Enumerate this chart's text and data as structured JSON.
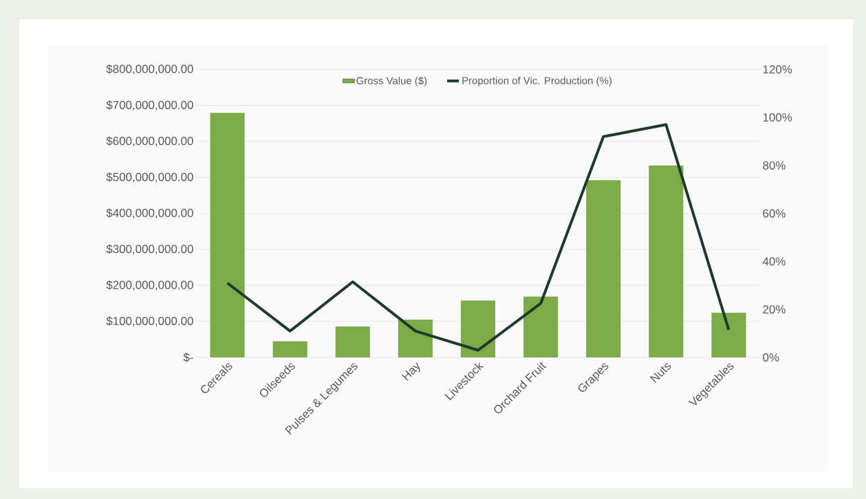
{
  "chart_data": {
    "type": "bar",
    "categories": [
      "Cereals",
      "Oilseeds",
      "Pulses & Legumes",
      "Hay",
      "Livestock",
      "Orchard Fruit",
      "Grapes",
      "Nuts",
      "Vegetables"
    ],
    "series": [
      {
        "name": "Gross Value ($)",
        "type": "bar",
        "color": "#7eab4a",
        "values": [
          679000000,
          45000000,
          86000000,
          105000000,
          158000000,
          169000000,
          492000000,
          533000000,
          124000000
        ]
      },
      {
        "name": "Proportion of Vic. Production (%)",
        "type": "line",
        "axis": "y2",
        "color": "#1e3a2b",
        "values": [
          31,
          11,
          31.5,
          11,
          3,
          22.5,
          92,
          97,
          11.5
        ]
      }
    ],
    "ylim": [
      0,
      800000000
    ],
    "yticks": [
      {
        "value": 0,
        "label": "$-"
      },
      {
        "value": 100000000,
        "label": "$100,000,000.00"
      },
      {
        "value": 200000000,
        "label": "$200,000,000.00"
      },
      {
        "value": 300000000,
        "label": "$300,000,000.00"
      },
      {
        "value": 400000000,
        "label": "$400,000,000.00"
      },
      {
        "value": 500000000,
        "label": "$500,000,000.00"
      },
      {
        "value": 600000000,
        "label": "$600,000,000.00"
      },
      {
        "value": 700000000,
        "label": "$700,000,000.00"
      },
      {
        "value": 800000000,
        "label": "$800,000,000.00"
      }
    ],
    "y2lim": [
      0,
      120
    ],
    "y2ticks": [
      {
        "value": 0,
        "label": "0%"
      },
      {
        "value": 20,
        "label": "20%"
      },
      {
        "value": 40,
        "label": "40%"
      },
      {
        "value": 60,
        "label": "60%"
      },
      {
        "value": 80,
        "label": "80%"
      },
      {
        "value": 100,
        "label": "100%"
      },
      {
        "value": 120,
        "label": "120%"
      }
    ],
    "grid": "y",
    "legend": "top"
  }
}
